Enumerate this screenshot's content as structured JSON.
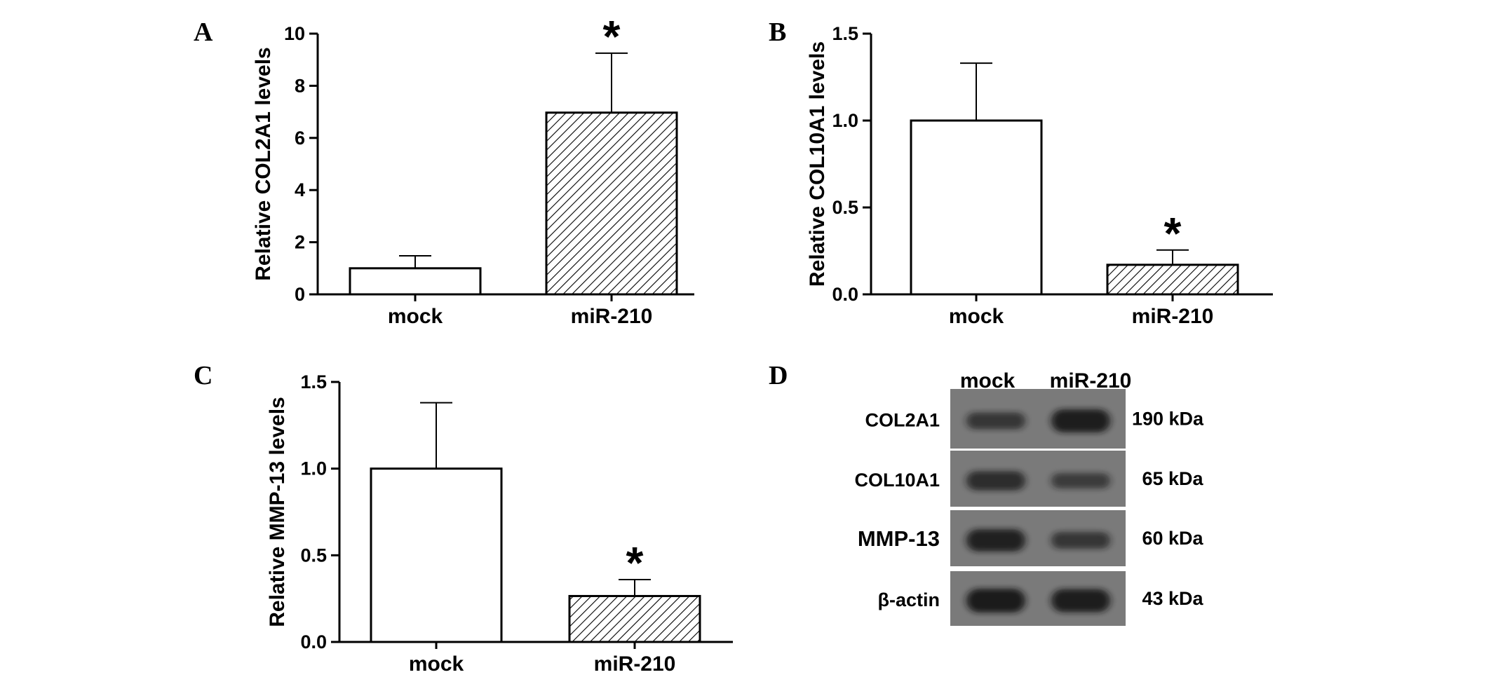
{
  "colors": {
    "axis": "#000000",
    "bar_fill_mock": "#ffffff",
    "bar_hatch_mir": "#000000",
    "blot_background": "#7a7a7a",
    "band": "#141414"
  },
  "chart_data": [
    {
      "type": "bar",
      "panel": "A",
      "categories": [
        "mock",
        "miR-210"
      ],
      "values": [
        1.0,
        6.97
      ],
      "errors": [
        0.48,
        2.28
      ],
      "significance": [
        "",
        "*"
      ],
      "xlabel": "",
      "ylabel": "Relative COL2A1 levels",
      "ylim": [
        0,
        10
      ],
      "yticks": [
        "0",
        "2",
        "4",
        "6",
        "8",
        "10"
      ],
      "yticks_values": [
        0,
        2,
        4,
        6,
        8,
        10
      ],
      "grid": false
    },
    {
      "type": "bar",
      "panel": "B",
      "categories": [
        "mock",
        "miR-210"
      ],
      "values": [
        1.0,
        0.17
      ],
      "errors": [
        0.33,
        0.085
      ],
      "significance": [
        "",
        "*"
      ],
      "xlabel": "",
      "ylabel": "Relative COL10A1 levels",
      "ylim": [
        0,
        1.5
      ],
      "yticks": [
        "0.0",
        "0.5",
        "1.0",
        "1.5"
      ],
      "yticks_values": [
        0,
        0.5,
        1.0,
        1.5
      ],
      "grid": false
    },
    {
      "type": "bar",
      "panel": "C",
      "categories": [
        "mock",
        "miR-210"
      ],
      "values": [
        1.0,
        0.265
      ],
      "errors": [
        0.38,
        0.095
      ],
      "significance": [
        "",
        "*"
      ],
      "xlabel": "",
      "ylabel": "Relative MMP-13 levels",
      "ylim": [
        0,
        1.5
      ],
      "yticks": [
        "0.0",
        "0.5",
        "1.0",
        "1.5"
      ],
      "yticks_values": [
        0,
        0.5,
        1.0,
        1.5
      ],
      "grid": false
    }
  ],
  "blot": {
    "panel": "D",
    "columns": [
      "mock",
      "miR-210"
    ],
    "rows": [
      {
        "protein": "COL2A1",
        "size": "190 kDa",
        "intensity": [
          0.55,
          0.95
        ]
      },
      {
        "protein": "COL10A1",
        "size": "65 kDa",
        "intensity": [
          0.7,
          0.45
        ]
      },
      {
        "protein": "MMP-13",
        "size": "60 kDa",
        "intensity": [
          0.9,
          0.55
        ]
      },
      {
        "protein": "β-actin",
        "size": "43 kDa",
        "intensity": [
          1.0,
          0.95
        ]
      }
    ]
  }
}
